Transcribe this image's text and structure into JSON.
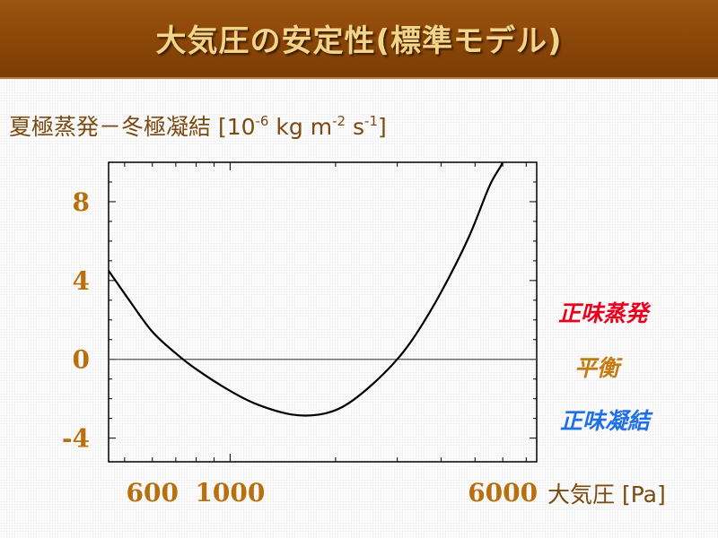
{
  "title": "大気圧の安定性(標準モデル)",
  "y_axis_title": {
    "prefix": "夏極蒸発－冬極凝結 [10",
    "exp1": "-6",
    "mid1": " kg m",
    "exp2": "-2",
    "mid2": " s",
    "exp3": "-1",
    "suffix": "]"
  },
  "x_axis_title": "大気圧 [Pa]",
  "legend": {
    "net_evaporation": {
      "label": "正味蒸発",
      "color": "#e8001c"
    },
    "equilibrium": {
      "label": "平衡",
      "color": "#c67a12"
    },
    "net_condensation": {
      "label": "正味凝結",
      "color": "#1f6fe8"
    }
  },
  "chart_data": {
    "type": "line",
    "x_scale": "log",
    "xlim": [
      450,
      7500
    ],
    "ylim": [
      -5.2,
      10
    ],
    "yticks": [
      8,
      4,
      0,
      -4
    ],
    "ytick_labels": [
      "8",
      "4",
      "0",
      "-4"
    ],
    "xticks": [
      600,
      1000,
      6000
    ],
    "xtick_labels": [
      "600",
      "1000",
      "6000"
    ],
    "zero_line": true,
    "series": [
      {
        "x": [
          450,
          520,
          600,
          700,
          800,
          1000,
          1200,
          1500,
          1800,
          2100,
          2500,
          3000,
          3400,
          4000,
          4800,
          5500,
          6000,
          6500
        ],
        "y": [
          4.5,
          2.9,
          1.4,
          0.3,
          -0.5,
          -1.6,
          -2.3,
          -2.8,
          -2.8,
          -2.4,
          -1.4,
          0.0,
          1.3,
          3.4,
          6.2,
          8.8,
          10.0,
          11.5
        ]
      }
    ]
  }
}
